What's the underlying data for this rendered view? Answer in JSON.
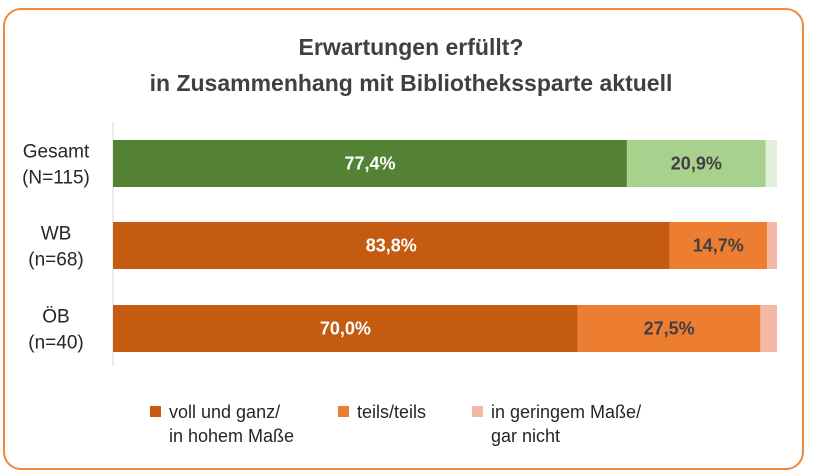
{
  "chart_data": {
    "type": "bar",
    "orientation": "horizontal",
    "stacked": true,
    "title": "Erwartungen erfüllt?",
    "subtitle": "in Zusammenhang mit Bibliothekssparte aktuell",
    "categories": [
      {
        "name": "Gesamt",
        "n": "(N=115)"
      },
      {
        "name": "WB",
        "n": "(n=68)"
      },
      {
        "name": "ÖB",
        "n": "(n=40)"
      }
    ],
    "xlim": [
      0,
      100
    ],
    "grid": false,
    "legend_position": "bottom",
    "series": [
      {
        "name_lines": [
          "voll und ganz/",
          "in hohem Maße"
        ],
        "values": [
          77.4,
          83.8,
          70.0
        ],
        "labels": [
          "77,4%",
          "83,8%",
          "70,0%"
        ],
        "colors": [
          "#548235",
          "#C55A11",
          "#C55A11"
        ],
        "label_color": "#ffffff",
        "legend_color": "#C55A11"
      },
      {
        "name_lines": [
          "teils/teils"
        ],
        "values": [
          20.9,
          14.7,
          27.5
        ],
        "labels": [
          "20,9%",
          "14,7%",
          "27,5%"
        ],
        "colors": [
          "#A9D18E",
          "#ED7D31",
          "#ED7D31"
        ],
        "label_color": "#404040",
        "legend_color": "#ED7D31"
      },
      {
        "name_lines": [
          "in geringem Maße/",
          "gar nicht"
        ],
        "values": [
          1.7,
          1.5,
          2.5
        ],
        "labels": [
          "",
          "",
          ""
        ],
        "colors": [
          "#E2F0D9",
          "#F4B9A4",
          "#F4B9A4"
        ],
        "label_color": "#404040",
        "legend_color": "#F4B9A4"
      }
    ]
  }
}
